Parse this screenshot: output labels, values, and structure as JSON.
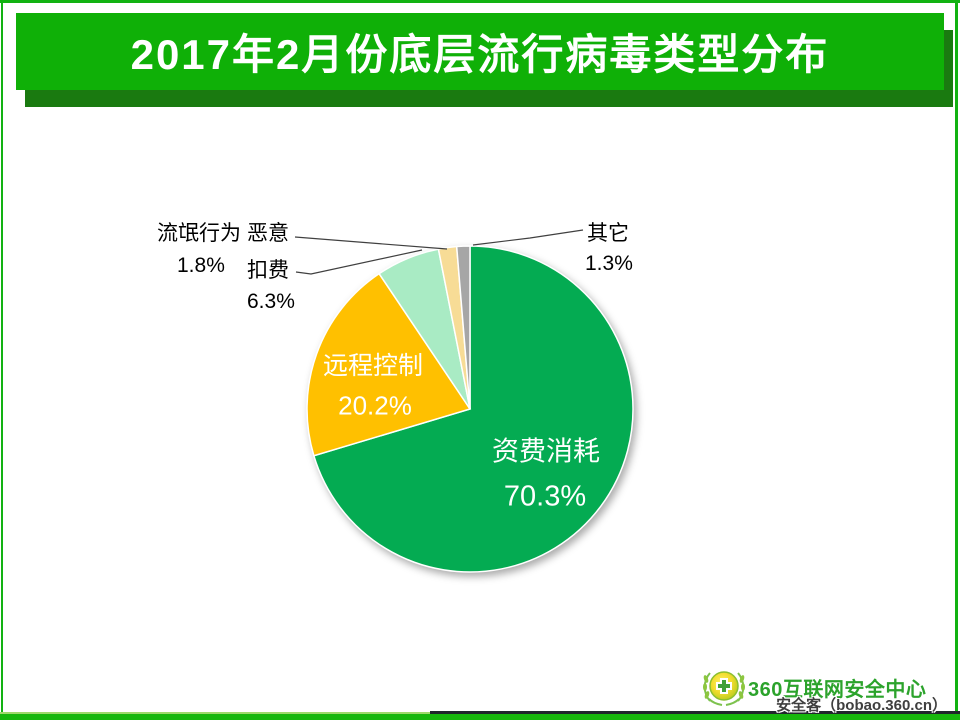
{
  "page": {
    "title": "2017年2月份底层流行病毒类型分布"
  },
  "chart_data": {
    "type": "pie",
    "title": "2017年2月份底层流行病毒类型分布",
    "values_unit": "%",
    "start_angle_deg": 0,
    "direction": "clockwise",
    "legend": "none",
    "slices": [
      {
        "name": "资费消耗",
        "value": 70.3,
        "pct": "70.3%",
        "color": "#04AB52",
        "label_position": "inside"
      },
      {
        "name": "远程控制",
        "value": 20.2,
        "pct": "20.2%",
        "color": "#FFC000",
        "label_position": "inside"
      },
      {
        "name": "恶意扣费",
        "name_line1": "恶意",
        "name_line2": "扣费",
        "value": 6.3,
        "pct": "6.3%",
        "color": "#A9EBC4",
        "label_position": "outside"
      },
      {
        "name": "流氓行为",
        "value": 1.8,
        "pct": "1.8%",
        "color": "#F7DC96",
        "label_position": "outside"
      },
      {
        "name": "其它",
        "value": 1.3,
        "pct": "1.3%",
        "color": "#A6A6A6",
        "label_position": "outside"
      }
    ]
  },
  "footer": {
    "brand": "360互联网安全中心",
    "watermark": "安全客（bobao.360.cn）"
  },
  "colors": {
    "banner": "#0FB007",
    "banner_shadow": "#1A7A10",
    "frame": "#12B212",
    "bottom_bar": "#17B70D",
    "brand_green": "#2CA32C"
  }
}
